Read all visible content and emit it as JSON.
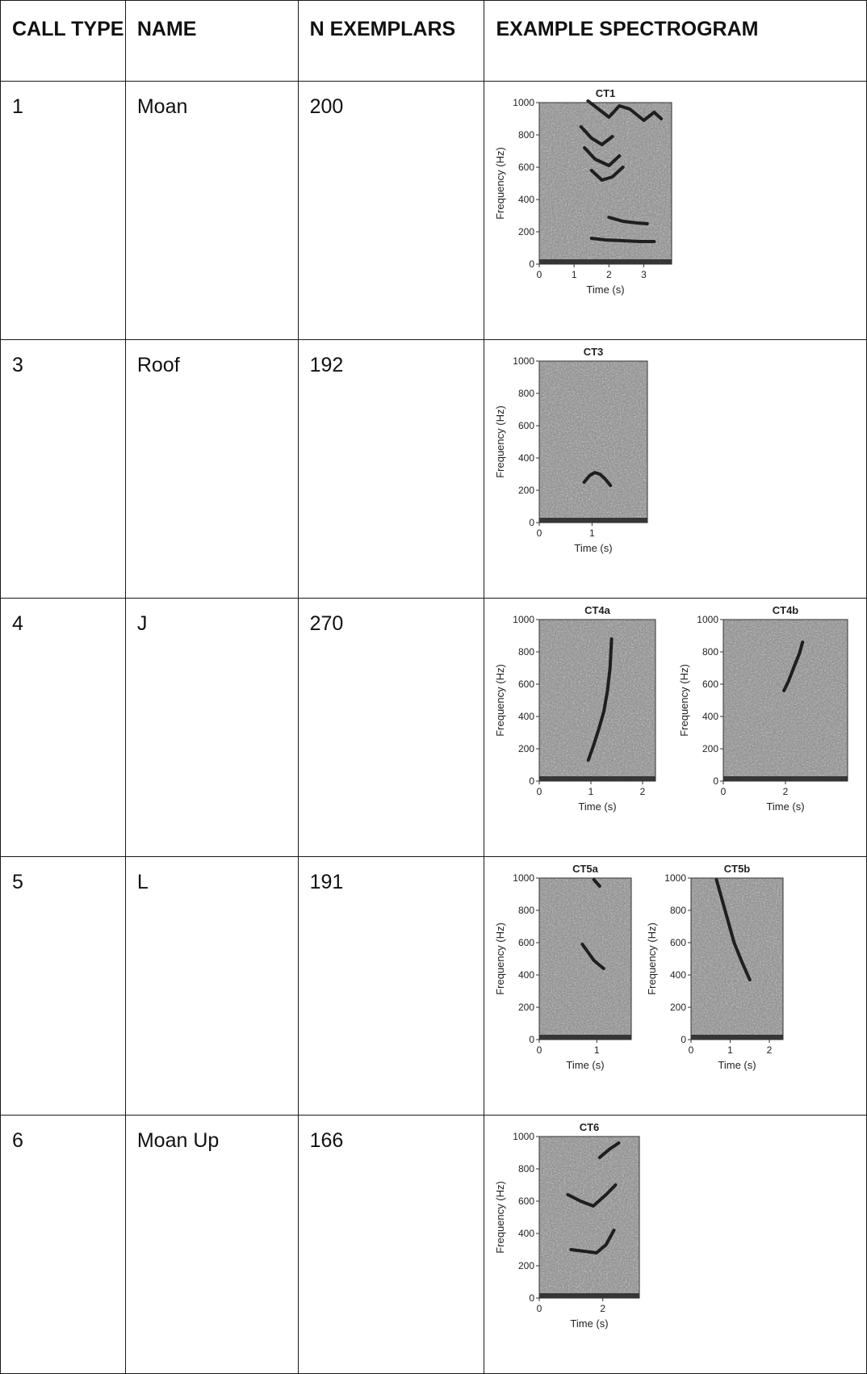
{
  "table": {
    "headers": [
      "CALL TYPE",
      "NAME",
      "N EXEMPLARS",
      "EXAMPLE SPECTROGRAM"
    ],
    "rows": [
      {
        "call_type": "1",
        "name": "Moan",
        "n": "200"
      },
      {
        "call_type": "3",
        "name": "Roof",
        "n": "192"
      },
      {
        "call_type": "4",
        "name": "J",
        "n": "270"
      },
      {
        "call_type": "5",
        "name": "L",
        "n": "191"
      },
      {
        "call_type": "6",
        "name": "Moan Up",
        "n": "166"
      }
    ]
  },
  "chart_data": [
    {
      "type": "heatmap",
      "title": "CT1",
      "xlabel": "Time (s)",
      "ylabel": "Frequency (Hz)",
      "xticks": [
        "0",
        "1",
        "2",
        "3"
      ],
      "yticks": [
        "0",
        "200",
        "400",
        "600",
        "800",
        "1000"
      ],
      "xlim": [
        0,
        3.8
      ],
      "ylim": [
        0,
        1000
      ],
      "colormap": "grayscale",
      "contours": [
        {
          "x": [
            1.4,
            1.7,
            2.0,
            2.3,
            2.6,
            3.0,
            3.3,
            3.5
          ],
          "y": [
            1010,
            960,
            910,
            980,
            960,
            890,
            940,
            900
          ]
        },
        {
          "x": [
            1.2,
            1.5,
            1.8,
            2.1
          ],
          "y": [
            850,
            780,
            740,
            790
          ]
        },
        {
          "x": [
            1.3,
            1.6,
            2.0,
            2.3
          ],
          "y": [
            720,
            650,
            610,
            670
          ]
        },
        {
          "x": [
            1.5,
            1.8,
            2.1,
            2.4
          ],
          "y": [
            580,
            520,
            540,
            600
          ]
        },
        {
          "x": [
            2.0,
            2.4,
            2.8,
            3.1
          ],
          "y": [
            290,
            265,
            255,
            250
          ]
        },
        {
          "x": [
            1.5,
            1.9,
            2.4,
            2.9,
            3.3
          ],
          "y": [
            160,
            150,
            145,
            140,
            140
          ]
        }
      ]
    },
    {
      "type": "heatmap",
      "title": "CT3",
      "xlabel": "Time (s)",
      "ylabel": "Frequency (Hz)",
      "xticks": [
        "0",
        "1"
      ],
      "yticks": [
        "0",
        "200",
        "400",
        "600",
        "800",
        "1000"
      ],
      "xlim": [
        0,
        2.05
      ],
      "ylim": [
        0,
        1000
      ],
      "colormap": "grayscale",
      "contours": [
        {
          "x": [
            0.85,
            0.95,
            1.05,
            1.15,
            1.25,
            1.35
          ],
          "y": [
            250,
            290,
            310,
            300,
            270,
            230
          ]
        }
      ]
    },
    {
      "type": "heatmap",
      "title": "CT4a",
      "xlabel": "Time (s)",
      "ylabel": "Frequency (Hz)",
      "xticks": [
        "0",
        "1",
        "2"
      ],
      "yticks": [
        "0",
        "200",
        "400",
        "600",
        "800",
        "1000"
      ],
      "xlim": [
        0,
        2.25
      ],
      "ylim": [
        0,
        1000
      ],
      "colormap": "grayscale",
      "contours": [
        {
          "x": [
            0.95,
            1.05,
            1.15,
            1.25,
            1.32,
            1.37,
            1.4
          ],
          "y": [
            130,
            220,
            320,
            430,
            560,
            700,
            880
          ]
        }
      ]
    },
    {
      "type": "heatmap",
      "title": "CT4b",
      "xlabel": "Time (s)",
      "ylabel": "Frequency (Hz)",
      "xticks": [
        "0",
        "2"
      ],
      "yticks": [
        "0",
        "200",
        "400",
        "600",
        "800",
        "1000"
      ],
      "xlim": [
        0,
        4.0
      ],
      "ylim": [
        0,
        1000
      ],
      "colormap": "grayscale",
      "contours": [
        {
          "x": [
            1.95,
            2.1,
            2.3,
            2.45,
            2.55
          ],
          "y": [
            560,
            620,
            720,
            790,
            860
          ]
        }
      ]
    },
    {
      "type": "heatmap",
      "title": "CT5a",
      "xlabel": "Time (s)",
      "ylabel": "Frequency (Hz)",
      "xticks": [
        "0",
        "1"
      ],
      "yticks": [
        "0",
        "200",
        "400",
        "600",
        "800",
        "1000"
      ],
      "xlim": [
        0,
        1.6
      ],
      "ylim": [
        0,
        1000
      ],
      "colormap": "grayscale",
      "contours": [
        {
          "x": [
            0.75,
            0.85,
            0.95,
            1.05,
            1.12
          ],
          "y": [
            590,
            540,
            490,
            460,
            440
          ]
        },
        {
          "x": [
            0.95,
            1.05
          ],
          "y": [
            990,
            950
          ]
        }
      ]
    },
    {
      "type": "heatmap",
      "title": "CT5b",
      "xlabel": "Time (s)",
      "ylabel": "Frequency (Hz)",
      "xticks": [
        "0",
        "1",
        "2"
      ],
      "yticks": [
        "0",
        "200",
        "400",
        "600",
        "800",
        "1000"
      ],
      "xlim": [
        0,
        2.35
      ],
      "ylim": [
        0,
        1000
      ],
      "colormap": "grayscale",
      "contours": [
        {
          "x": [
            0.65,
            0.8,
            0.95,
            1.1,
            1.3,
            1.5
          ],
          "y": [
            990,
            860,
            730,
            600,
            480,
            370
          ]
        }
      ]
    },
    {
      "type": "heatmap",
      "title": "CT6",
      "xlabel": "Time (s)",
      "ylabel": "Frequency (Hz)",
      "xticks": [
        "0",
        "2"
      ],
      "yticks": [
        "0",
        "200",
        "400",
        "600",
        "800",
        "1000"
      ],
      "xlim": [
        0,
        3.15
      ],
      "ylim": [
        0,
        1000
      ],
      "colormap": "grayscale",
      "contours": [
        {
          "x": [
            1.0,
            1.4,
            1.8,
            2.1,
            2.35
          ],
          "y": [
            300,
            290,
            280,
            330,
            420
          ]
        },
        {
          "x": [
            0.9,
            1.3,
            1.7,
            2.1,
            2.4
          ],
          "y": [
            640,
            600,
            570,
            640,
            700
          ]
        },
        {
          "x": [
            1.9,
            2.2,
            2.5
          ],
          "y": [
            870,
            920,
            960
          ]
        }
      ]
    }
  ]
}
